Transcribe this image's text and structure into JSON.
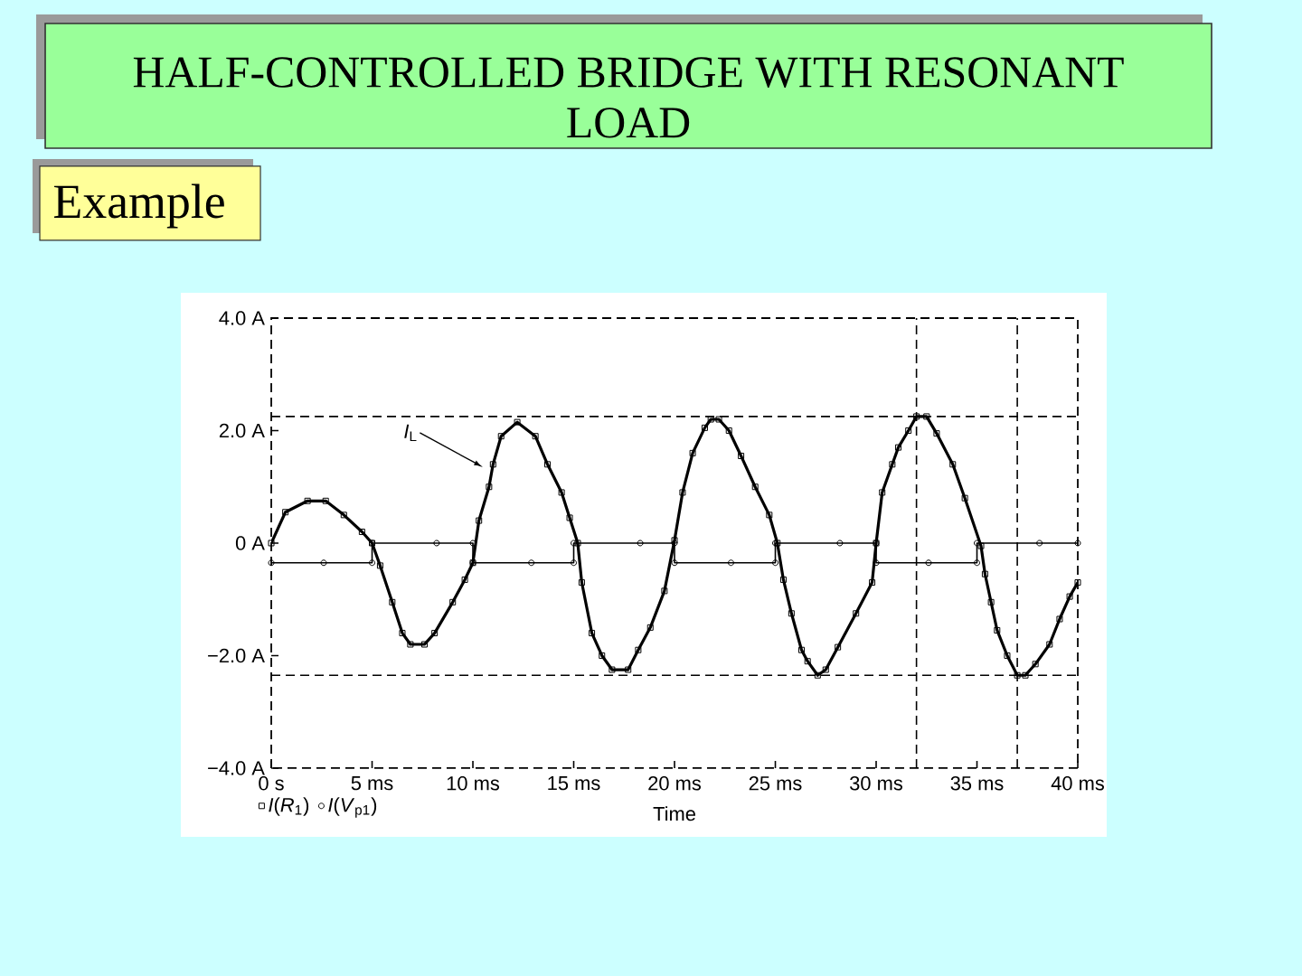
{
  "chart_data": {
    "type": "line",
    "title": "HALF-CONTROLLED BRIDGE WITH RESONANT LOAD",
    "subtitle": "Example",
    "xlabel": "Time",
    "xlim": [
      0,
      40
    ],
    "ylim": [
      -4,
      4
    ],
    "xticks": [
      {
        "value": 0,
        "label": "0 s"
      },
      {
        "value": 5,
        "label": "5 ms"
      },
      {
        "value": 10,
        "label": "10 ms"
      },
      {
        "value": 15,
        "label": "15 ms"
      },
      {
        "value": 20,
        "label": "20 ms"
      },
      {
        "value": 25,
        "label": "25 ms"
      },
      {
        "value": 30,
        "label": "30 ms"
      },
      {
        "value": 35,
        "label": "35 ms"
      },
      {
        "value": 40,
        "label": "40 ms"
      }
    ],
    "yticks": [
      {
        "value": -4,
        "label": "−4.0 A"
      },
      {
        "value": -2,
        "label": "−2.0 A"
      },
      {
        "value": 0,
        "label": "0 A"
      },
      {
        "value": 2,
        "label": "2.0 A"
      },
      {
        "value": 4,
        "label": "4.0 A"
      }
    ],
    "legend": "bottom left",
    "series": [
      {
        "name": "*I*(*R*$_{1}$)",
        "color": "#000000",
        "marker": "square",
        "x": [
          0,
          0.7,
          1.8,
          2.7,
          3.6,
          4.5,
          5.0,
          5.4,
          6.0,
          6.5,
          6.9,
          7.6,
          8.1,
          9.0,
          9.6,
          10.0,
          10.3,
          10.8,
          11.0,
          11.4,
          12.2,
          13.1,
          13.7,
          14.4,
          14.8,
          15.2,
          15.4,
          15.9,
          16.4,
          16.9,
          17.7,
          18.2,
          18.8,
          19.5,
          20.0,
          20.4,
          20.9,
          21.5,
          21.8,
          22.2,
          22.7,
          23.3,
          24.0,
          24.7,
          25.1,
          25.4,
          25.8,
          26.3,
          26.6,
          27.1,
          27.5,
          28.1,
          29.0,
          29.8,
          30.0,
          30.3,
          30.8,
          31.1,
          31.6,
          32.0,
          32.5,
          33.0,
          33.8,
          34.4,
          35.2,
          35.4,
          35.7,
          36.0,
          36.5,
          37.0,
          37.4,
          37.9,
          38.6,
          39.1,
          39.6,
          40.0
        ],
        "values": [
          0,
          0.55,
          0.75,
          0.75,
          0.5,
          0.2,
          0,
          -0.4,
          -1.05,
          -1.6,
          -1.8,
          -1.8,
          -1.6,
          -1.05,
          -0.65,
          -0.35,
          0.4,
          1.0,
          1.4,
          1.9,
          2.15,
          1.9,
          1.4,
          0.9,
          0.45,
          0,
          -0.7,
          -1.6,
          -2.0,
          -2.25,
          -2.25,
          -1.9,
          -1.5,
          -0.85,
          0.05,
          0.9,
          1.6,
          2.05,
          2.2,
          2.2,
          2.0,
          1.55,
          1.0,
          0.5,
          0,
          -0.65,
          -1.25,
          -1.9,
          -2.1,
          -2.35,
          -2.25,
          -1.85,
          -1.25,
          -0.7,
          0,
          0.9,
          1.4,
          1.7,
          2.0,
          2.25,
          2.25,
          1.95,
          1.4,
          0.8,
          -0.05,
          -0.55,
          -1.05,
          -1.55,
          -2.0,
          -2.35,
          -2.35,
          -2.15,
          -1.8,
          -1.35,
          -0.95,
          -0.7
        ]
      },
      {
        "name": "*I*(*V*$_{p1}$)",
        "color": "#000000",
        "marker": "circle",
        "x": [
          0,
          2.6,
          5,
          5,
          8.2,
          10,
          10,
          12.9,
          15,
          15,
          18.3,
          20,
          20,
          22.8,
          25,
          25,
          28.2,
          30,
          30,
          32.6,
          35,
          35,
          38.1,
          40
        ],
        "values": [
          -0.35,
          -0.35,
          -0.35,
          0,
          0,
          0,
          -0.35,
          -0.35,
          -0.35,
          0,
          0,
          0,
          -0.35,
          -0.35,
          -0.35,
          0,
          0,
          0,
          -0.35,
          -0.35,
          -0.35,
          0,
          0,
          0
        ]
      }
    ],
    "ref_lines": [
      {
        "axis": "y",
        "value": 2.25,
        "line_style": "dashed"
      },
      {
        "axis": "y",
        "value": -2.35,
        "line_style": "dashed"
      },
      {
        "axis": "x",
        "value": 32,
        "line_style": "dashed"
      },
      {
        "axis": "x",
        "value": 37,
        "line_style": "dashed"
      }
    ],
    "annotations": [
      {
        "text": "*I*$_{L}$",
        "x": 10.5,
        "y": 1.35
      }
    ]
  }
}
